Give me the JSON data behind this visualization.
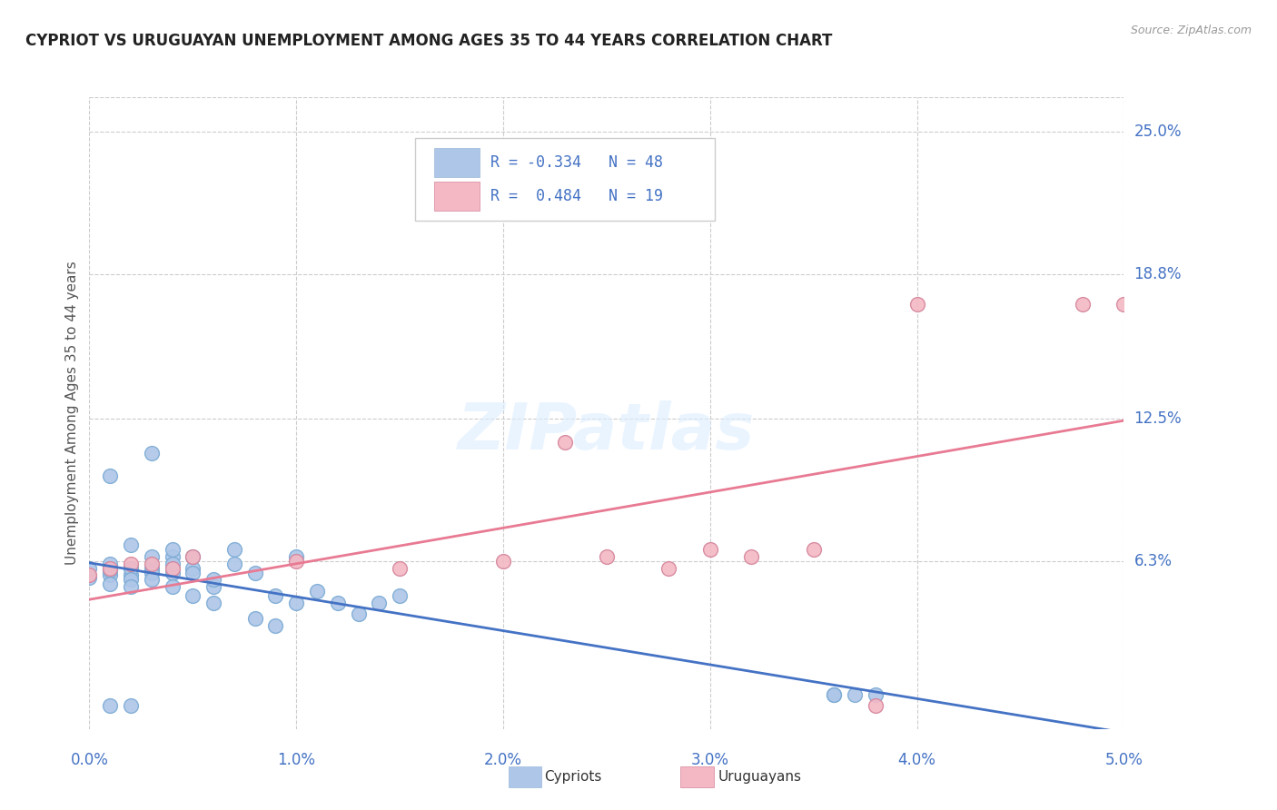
{
  "title": "CYPRIOT VS URUGUAYAN UNEMPLOYMENT AMONG AGES 35 TO 44 YEARS CORRELATION CHART",
  "source": "Source: ZipAtlas.com",
  "ylabel": "Unemployment Among Ages 35 to 44 years",
  "xlim": [
    0.0,
    0.05
  ],
  "ylim": [
    -0.01,
    0.265
  ],
  "xtick_labels": [
    "0.0%",
    "1.0%",
    "2.0%",
    "3.0%",
    "4.0%",
    "5.0%"
  ],
  "xtick_values": [
    0.0,
    0.01,
    0.02,
    0.03,
    0.04,
    0.05
  ],
  "ytick_labels": [
    "6.3%",
    "12.5%",
    "18.8%",
    "25.0%"
  ],
  "ytick_values": [
    0.063,
    0.125,
    0.188,
    0.25
  ],
  "cypriot_color": "#aec6e8",
  "uruguayan_color": "#f4b8c4",
  "cypriot_line_color": "#4472c4",
  "uruguayan_line_color": "#e87a93",
  "cypriot_R": -0.334,
  "cypriot_N": 48,
  "uruguayan_R": 0.484,
  "uruguayan_N": 19,
  "legend_label_cypriot": "Cypriots",
  "legend_label_uruguayan": "Uruguayans",
  "background_color": "#ffffff",
  "grid_color": "#cccccc",
  "title_color": "#222222",
  "right_tick_color": "#4472c4",
  "bottom_tick_color": "#4472c4",
  "cypriot_x": [
    0.0,
    0.0,
    0.001,
    0.001,
    0.001,
    0.001,
    0.001,
    0.001,
    0.002,
    0.002,
    0.002,
    0.002,
    0.002,
    0.002,
    0.003,
    0.003,
    0.003,
    0.003,
    0.003,
    0.004,
    0.004,
    0.004,
    0.004,
    0.004,
    0.005,
    0.005,
    0.005,
    0.005,
    0.006,
    0.006,
    0.006,
    0.007,
    0.007,
    0.008,
    0.008,
    0.009,
    0.009,
    0.01,
    0.01,
    0.011,
    0.012,
    0.013,
    0.014,
    0.015,
    0.036,
    0.036,
    0.037,
    0.038
  ],
  "cypriot_y": [
    0.056,
    0.06,
    0.057,
    0.059,
    0.053,
    0.062,
    0.1,
    0.0,
    0.057,
    0.06,
    0.055,
    0.052,
    0.0,
    0.07,
    0.06,
    0.058,
    0.055,
    0.11,
    0.065,
    0.065,
    0.058,
    0.052,
    0.068,
    0.062,
    0.06,
    0.058,
    0.048,
    0.065,
    0.052,
    0.055,
    0.045,
    0.068,
    0.062,
    0.058,
    0.038,
    0.048,
    0.035,
    0.045,
    0.065,
    0.05,
    0.045,
    0.04,
    0.045,
    0.048,
    0.005,
    0.005,
    0.005,
    0.005
  ],
  "uruguayan_x": [
    0.0,
    0.001,
    0.002,
    0.003,
    0.004,
    0.005,
    0.01,
    0.015,
    0.02,
    0.023,
    0.025,
    0.028,
    0.03,
    0.032,
    0.035,
    0.038,
    0.04,
    0.048,
    0.05
  ],
  "uruguayan_y": [
    0.057,
    0.06,
    0.062,
    0.062,
    0.06,
    0.065,
    0.063,
    0.06,
    0.063,
    0.115,
    0.065,
    0.06,
    0.068,
    0.065,
    0.068,
    0.0,
    0.175,
    0.175,
    0.175
  ]
}
